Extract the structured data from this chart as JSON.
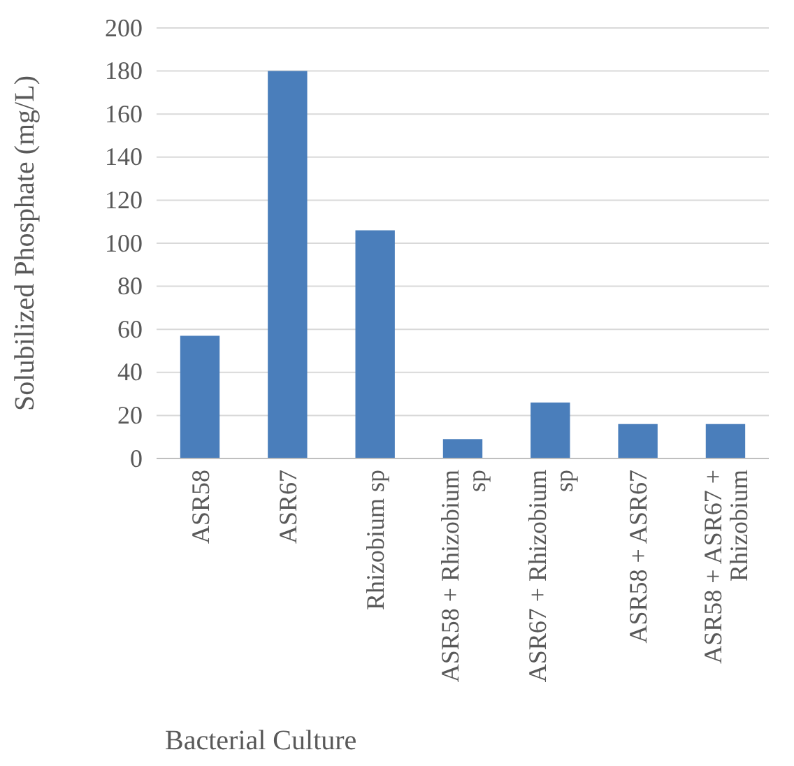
{
  "chart_data": {
    "type": "bar",
    "xlabel": "Bacterial Culture",
    "ylabel": "Solubilized Phosphate (mg/L)",
    "categories": [
      "ASR58",
      "ASR67",
      "Rhizobium sp",
      "ASR58 + Rhizobium sp",
      "ASR67 + Rhizobium sp",
      "ASR58 + ASR67",
      "ASR58 + ASR67 + Rhizobium"
    ],
    "values": [
      57,
      180,
      106,
      9,
      26,
      16,
      16
    ],
    "color": "#4a7ebb",
    "ylim": [
      0,
      200
    ],
    "yticks": [
      0,
      20,
      40,
      60,
      80,
      100,
      120,
      140,
      160,
      180,
      200
    ],
    "grid": "y"
  }
}
